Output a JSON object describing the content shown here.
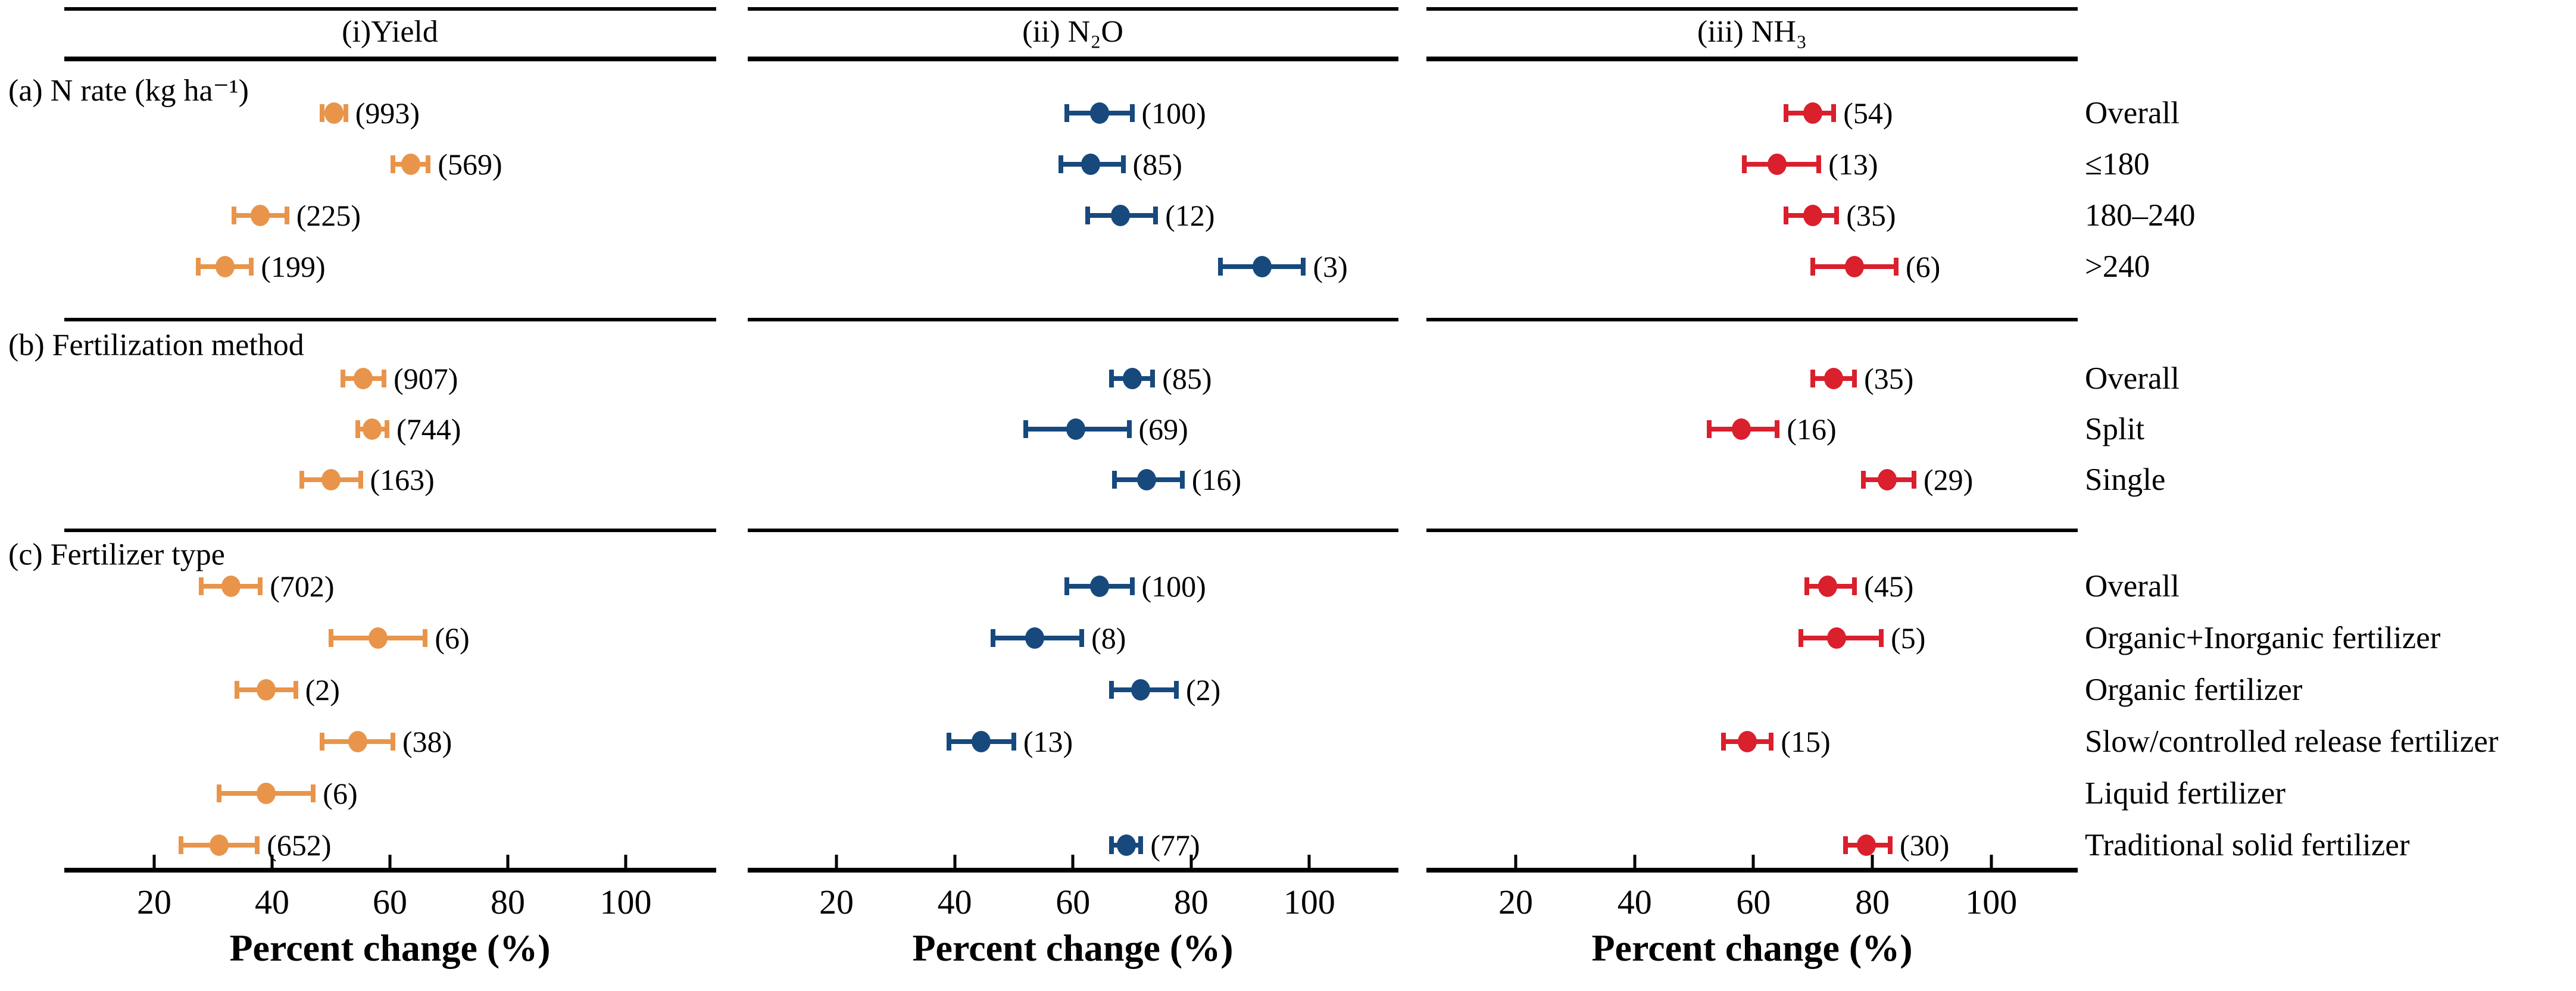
{
  "chart_data": {
    "type": "forest",
    "grid": false,
    "legend": "none",
    "x_axis": {
      "label": "Percent change (%)",
      "ticks": [
        20,
        40,
        60,
        80,
        100
      ],
      "range": [
        5,
        115
      ],
      "unit": "%"
    },
    "panels": [
      {
        "key": "yield",
        "title": "(i)Yield",
        "color": "#E8954B"
      },
      {
        "key": "n2o",
        "title": "(ii) N₂O",
        "color": "#17497D"
      },
      {
        "key": "nh3",
        "title": "(iii) NH₃",
        "color": "#DA1F2D"
      }
    ],
    "sections": [
      {
        "label": "(a) N rate  (kg ha⁻¹)",
        "rows": [
          {
            "label": "Overall",
            "yield": {
              "mean": 50.5,
              "lo": 48.5,
              "hi": 52.5,
              "n": 993
            },
            "n2o": {
              "mean": 64.5,
              "lo": 59.0,
              "hi": 70.0,
              "n": 100
            },
            "nh3": {
              "mean": 70.0,
              "lo": 65.5,
              "hi": 73.5,
              "n": 54
            }
          },
          {
            "label": "≤180",
            "yield": {
              "mean": 63.5,
              "lo": 60.5,
              "hi": 66.5,
              "n": 569
            },
            "n2o": {
              "mean": 63.0,
              "lo": 58.0,
              "hi": 68.5,
              "n": 85
            },
            "nh3": {
              "mean": 64.0,
              "lo": 58.5,
              "hi": 71.0,
              "n": 13
            }
          },
          {
            "label": "180–240",
            "yield": {
              "mean": 38.0,
              "lo": 33.5,
              "hi": 42.5,
              "n": 225
            },
            "n2o": {
              "mean": 68.0,
              "lo": 62.5,
              "hi": 74.0,
              "n": 12
            },
            "nh3": {
              "mean": 70.0,
              "lo": 65.5,
              "hi": 74.0,
              "n": 35
            }
          },
          {
            "label": ">240",
            "yield": {
              "mean": 32.0,
              "lo": 27.5,
              "hi": 36.5,
              "n": 199
            },
            "n2o": {
              "mean": 92.0,
              "lo": 85.0,
              "hi": 99.0,
              "n": 3
            },
            "nh3": {
              "mean": 77.0,
              "lo": 70.0,
              "hi": 84.0,
              "n": 6
            }
          }
        ]
      },
      {
        "label": "(b) Fertilization method",
        "rows": [
          {
            "label": "Overall",
            "yield": {
              "mean": 55.5,
              "lo": 52.0,
              "hi": 59.0,
              "n": 907
            },
            "n2o": {
              "mean": 70.0,
              "lo": 66.5,
              "hi": 73.5,
              "n": 85
            },
            "nh3": {
              "mean": 73.5,
              "lo": 70.0,
              "hi": 77.0,
              "n": 35
            }
          },
          {
            "label": "Split",
            "yield": {
              "mean": 57.0,
              "lo": 54.5,
              "hi": 59.5,
              "n": 744
            },
            "n2o": {
              "mean": 60.5,
              "lo": 52.0,
              "hi": 69.5,
              "n": 69
            },
            "nh3": {
              "mean": 58.0,
              "lo": 52.5,
              "hi": 64.0,
              "n": 16
            }
          },
          {
            "label": "Single",
            "yield": {
              "mean": 50.0,
              "lo": 45.0,
              "hi": 55.0,
              "n": 163
            },
            "n2o": {
              "mean": 72.5,
              "lo": 67.0,
              "hi": 78.5,
              "n": 16
            },
            "nh3": {
              "mean": 82.5,
              "lo": 78.5,
              "hi": 87.0,
              "n": 29
            }
          }
        ]
      },
      {
        "label": "(c) Fertilizer type",
        "rows": [
          {
            "label": "Overall",
            "yield": {
              "mean": 33.0,
              "lo": 28.0,
              "hi": 38.0,
              "n": 702
            },
            "n2o": {
              "mean": 64.5,
              "lo": 59.0,
              "hi": 70.0,
              "n": 100
            },
            "nh3": {
              "mean": 72.5,
              "lo": 69.0,
              "hi": 77.0,
              "n": 45
            }
          },
          {
            "label": "Organic+Inorganic fertilizer",
            "yield": {
              "mean": 58.0,
              "lo": 50.0,
              "hi": 66.0,
              "n": 6
            },
            "n2o": {
              "mean": 53.5,
              "lo": 46.5,
              "hi": 61.5,
              "n": 8
            },
            "nh3": {
              "mean": 74.0,
              "lo": 68.0,
              "hi": 81.5,
              "n": 5
            }
          },
          {
            "label": "Organic fertilizer",
            "yield": {
              "mean": 39.0,
              "lo": 34.0,
              "hi": 44.0,
              "n": 2
            },
            "n2o": {
              "mean": 71.5,
              "lo": 66.5,
              "hi": 77.5,
              "n": 2
            },
            "nh3": null
          },
          {
            "label": "Slow/controlled release fertilizer",
            "yield": {
              "mean": 54.5,
              "lo": 48.5,
              "hi": 60.5,
              "n": 38
            },
            "n2o": {
              "mean": 44.5,
              "lo": 39.0,
              "hi": 50.0,
              "n": 13
            },
            "nh3": {
              "mean": 59.0,
              "lo": 55.0,
              "hi": 63.0,
              "n": 15
            }
          },
          {
            "label": "Liquid fertilizer",
            "yield": {
              "mean": 39.0,
              "lo": 31.0,
              "hi": 47.0,
              "n": 6
            },
            "n2o": null,
            "nh3": null
          },
          {
            "label": "Traditional solid fertilizer",
            "yield": {
              "mean": 31.0,
              "lo": 24.5,
              "hi": 37.5,
              "n": 652
            },
            "n2o": {
              "mean": 69.0,
              "lo": 66.5,
              "hi": 71.5,
              "n": 77
            },
            "nh3": {
              "mean": 79.0,
              "lo": 75.5,
              "hi": 83.0,
              "n": 30
            }
          }
        ]
      }
    ]
  }
}
